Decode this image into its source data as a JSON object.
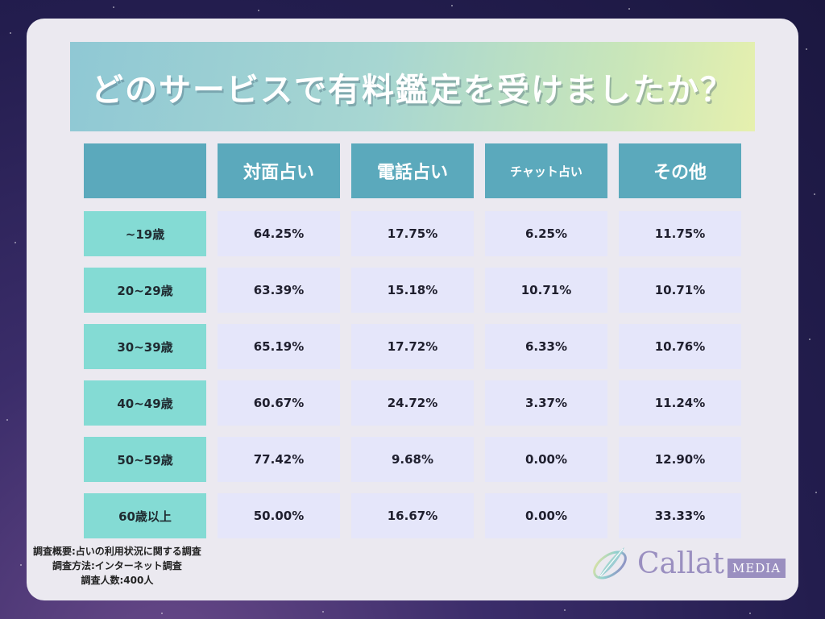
{
  "title": "どのサービスで有料鑑定を受けましたか？",
  "table": {
    "columns": [
      "対面占い",
      "電話占い",
      "チャット占い",
      "その他"
    ],
    "rows": [
      {
        "label": "~19歳",
        "values": [
          "64.25%",
          "17.75%",
          "6.25%",
          "11.75%"
        ]
      },
      {
        "label": "20~29歳",
        "values": [
          "63.39%",
          "15.18%",
          "10.71%",
          "10.71%"
        ]
      },
      {
        "label": "30~39歳",
        "values": [
          "65.19%",
          "17.72%",
          "6.33%",
          "10.76%"
        ]
      },
      {
        "label": "40~49歳",
        "values": [
          "60.67%",
          "24.72%",
          "3.37%",
          "11.24%"
        ]
      },
      {
        "label": "50~59歳",
        "values": [
          "77.42%",
          "9.68%",
          "0.00%",
          "12.90%"
        ]
      },
      {
        "label": "60歳以上",
        "values": [
          "50.00%",
          "16.67%",
          "0.00%",
          "33.33%"
        ]
      }
    ]
  },
  "footnote": {
    "line1": "調査概要:占いの利用状況に関する調査",
    "line2": "調査方法:インターネット調査",
    "line3": "調査人数:400人"
  },
  "logo": {
    "name": "Callat",
    "suffix": "MEDIA",
    "icon": "feather-logo-icon"
  },
  "colors": {
    "header": "#5ba9bc",
    "row_label": "#84dbd4",
    "value_cell": "#e5e6fa",
    "card": "#ebe9f0",
    "logo": "#9a8fc0"
  }
}
